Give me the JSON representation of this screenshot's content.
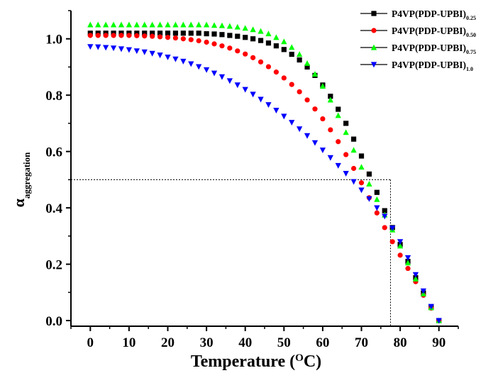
{
  "chart_data": {
    "type": "scatter",
    "xlabel": {
      "main": "Temperature (",
      "sup": "O",
      "post": "C)"
    },
    "ylabel": {
      "main": "α",
      "sub": "aggregation"
    },
    "xlim": [
      -5,
      95
    ],
    "ylim": [
      -0.02,
      1.1
    ],
    "x_ticks": [
      0,
      10,
      20,
      30,
      40,
      50,
      60,
      70,
      80,
      90
    ],
    "x_tick_labels": [
      "0",
      "10",
      "20",
      "30",
      "40",
      "50",
      "60",
      "70",
      "80",
      "90"
    ],
    "y_ticks": [
      0.0,
      0.2,
      0.4,
      0.6,
      0.8,
      1.0
    ],
    "y_tick_labels": [
      "0.0",
      "0.2",
      "0.4",
      "0.6",
      "0.8",
      "1.0"
    ],
    "grid": false,
    "legend_position": "top-right",
    "reference_point": {
      "x": 77.5,
      "y": 0.5
    },
    "series": [
      {
        "name": "P4VP(PDP-UPBI)",
        "subscript": "0.25",
        "marker": "square",
        "color": "#000000",
        "x": [
          0,
          2,
          4,
          6,
          8,
          10,
          12,
          14,
          16,
          18,
          20,
          22,
          24,
          26,
          28,
          30,
          32,
          34,
          36,
          38,
          40,
          42,
          44,
          46,
          48,
          50,
          52,
          54,
          56,
          58,
          60,
          62,
          64,
          66,
          68,
          70,
          72,
          74,
          76,
          78,
          80,
          82,
          84,
          86,
          88,
          90
        ],
        "y": [
          1.02,
          1.02,
          1.02,
          1.02,
          1.02,
          1.02,
          1.02,
          1.02,
          1.02,
          1.02,
          1.02,
          1.02,
          1.02,
          1.02,
          1.02,
          1.018,
          1.017,
          1.015,
          1.012,
          1.009,
          1.005,
          1.0,
          0.994,
          0.985,
          0.975,
          0.962,
          0.945,
          0.925,
          0.9,
          0.87,
          0.836,
          0.796,
          0.75,
          0.7,
          0.644,
          0.584,
          0.52,
          0.455,
          0.39,
          0.33,
          0.27,
          0.21,
          0.152,
          0.098,
          0.048,
          0.0
        ]
      },
      {
        "name": "P4VP(PDP-UPBI)",
        "subscript": "0.50",
        "marker": "circle",
        "color": "#ff0000",
        "x": [
          0,
          2,
          4,
          6,
          8,
          10,
          12,
          14,
          16,
          18,
          20,
          22,
          24,
          26,
          28,
          30,
          32,
          34,
          36,
          38,
          40,
          42,
          44,
          46,
          48,
          50,
          52,
          54,
          56,
          58,
          60,
          62,
          64,
          66,
          68,
          70,
          72,
          74,
          76,
          78,
          80,
          82,
          84,
          86,
          88,
          90
        ],
        "y": [
          1.012,
          1.012,
          1.012,
          1.012,
          1.012,
          1.012,
          1.011,
          1.01,
          1.009,
          1.007,
          1.005,
          1.003,
          1.0,
          0.997,
          0.993,
          0.988,
          0.982,
          0.975,
          0.967,
          0.957,
          0.946,
          0.933,
          0.918,
          0.901,
          0.882,
          0.861,
          0.838,
          0.812,
          0.783,
          0.751,
          0.716,
          0.677,
          0.635,
          0.589,
          0.54,
          0.489,
          0.436,
          0.382,
          0.33,
          0.28,
          0.232,
          0.185,
          0.138,
          0.09,
          0.044,
          0.0
        ]
      },
      {
        "name": "P4VP(PDP-UPBI)",
        "subscript": "0.75",
        "marker": "triangle-up",
        "color": "#00ff00",
        "x": [
          0,
          2,
          4,
          6,
          8,
          10,
          12,
          14,
          16,
          18,
          20,
          22,
          24,
          26,
          28,
          30,
          32,
          34,
          36,
          38,
          40,
          42,
          44,
          46,
          48,
          50,
          52,
          54,
          56,
          58,
          60,
          62,
          64,
          66,
          68,
          70,
          72,
          74,
          76,
          78,
          80,
          82,
          84,
          86,
          88,
          90
        ],
        "y": [
          1.05,
          1.05,
          1.05,
          1.05,
          1.05,
          1.05,
          1.05,
          1.05,
          1.05,
          1.05,
          1.05,
          1.05,
          1.05,
          1.05,
          1.05,
          1.05,
          1.048,
          1.047,
          1.045,
          1.042,
          1.038,
          1.033,
          1.027,
          1.018,
          1.005,
          0.99,
          0.97,
          0.945,
          0.913,
          0.875,
          0.832,
          0.783,
          0.728,
          0.668,
          0.605,
          0.545,
          0.485,
          0.43,
          0.375,
          0.322,
          0.265,
          0.205,
          0.148,
          0.095,
          0.046,
          0.0
        ]
      },
      {
        "name": "P4VP(PDP-UPBI)",
        "subscript": "1.0",
        "marker": "triangle-down",
        "color": "#0000ff",
        "x": [
          0,
          2,
          4,
          6,
          8,
          10,
          12,
          14,
          16,
          18,
          20,
          22,
          24,
          26,
          28,
          30,
          32,
          34,
          36,
          38,
          40,
          42,
          44,
          46,
          48,
          50,
          52,
          54,
          56,
          58,
          60,
          62,
          64,
          66,
          68,
          70,
          72,
          74,
          76,
          78,
          80,
          82,
          84,
          86,
          88,
          90
        ],
        "y": [
          0.972,
          0.971,
          0.969,
          0.967,
          0.964,
          0.961,
          0.957,
          0.953,
          0.948,
          0.942,
          0.935,
          0.928,
          0.92,
          0.911,
          0.901,
          0.89,
          0.878,
          0.865,
          0.851,
          0.836,
          0.82,
          0.803,
          0.785,
          0.766,
          0.746,
          0.725,
          0.703,
          0.68,
          0.656,
          0.631,
          0.605,
          0.578,
          0.55,
          0.522,
          0.493,
          0.463,
          0.432,
          0.4,
          0.37,
          0.328,
          0.28,
          0.223,
          0.163,
          0.105,
          0.05,
          0.0
        ]
      }
    ]
  }
}
